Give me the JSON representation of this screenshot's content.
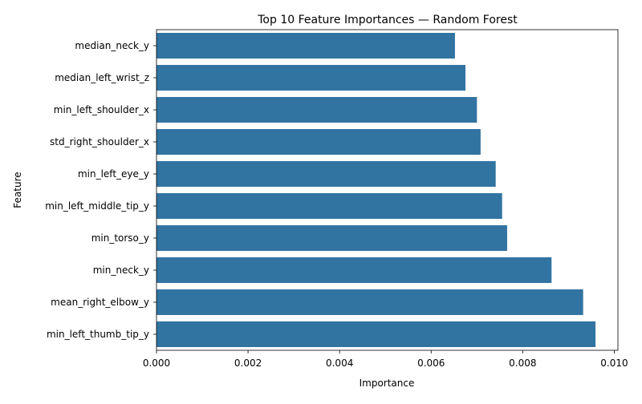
{
  "chart_data": {
    "type": "bar",
    "orientation": "horizontal",
    "title": "Top 10 Feature Importances — Random Forest",
    "xlabel": "Importance",
    "ylabel": "Feature",
    "categories": [
      "median_neck_y",
      "median_left_wrist_z",
      "min_left_shoulder_x",
      "std_right_shoulder_x",
      "min_left_eye_y",
      "min_left_middle_tip_y",
      "min_torso_y",
      "min_neck_y",
      "mean_right_elbow_y",
      "min_left_thumb_tip_y"
    ],
    "values": [
      0.00652,
      0.00675,
      0.007,
      0.00708,
      0.00741,
      0.00755,
      0.00766,
      0.00863,
      0.00932,
      0.00959
    ],
    "xlim": [
      0,
      0.01008
    ],
    "xticks": [
      "0.000",
      "0.002",
      "0.004",
      "0.006",
      "0.008",
      "0.010"
    ],
    "grid": false,
    "bar_color": "#3274a1"
  }
}
